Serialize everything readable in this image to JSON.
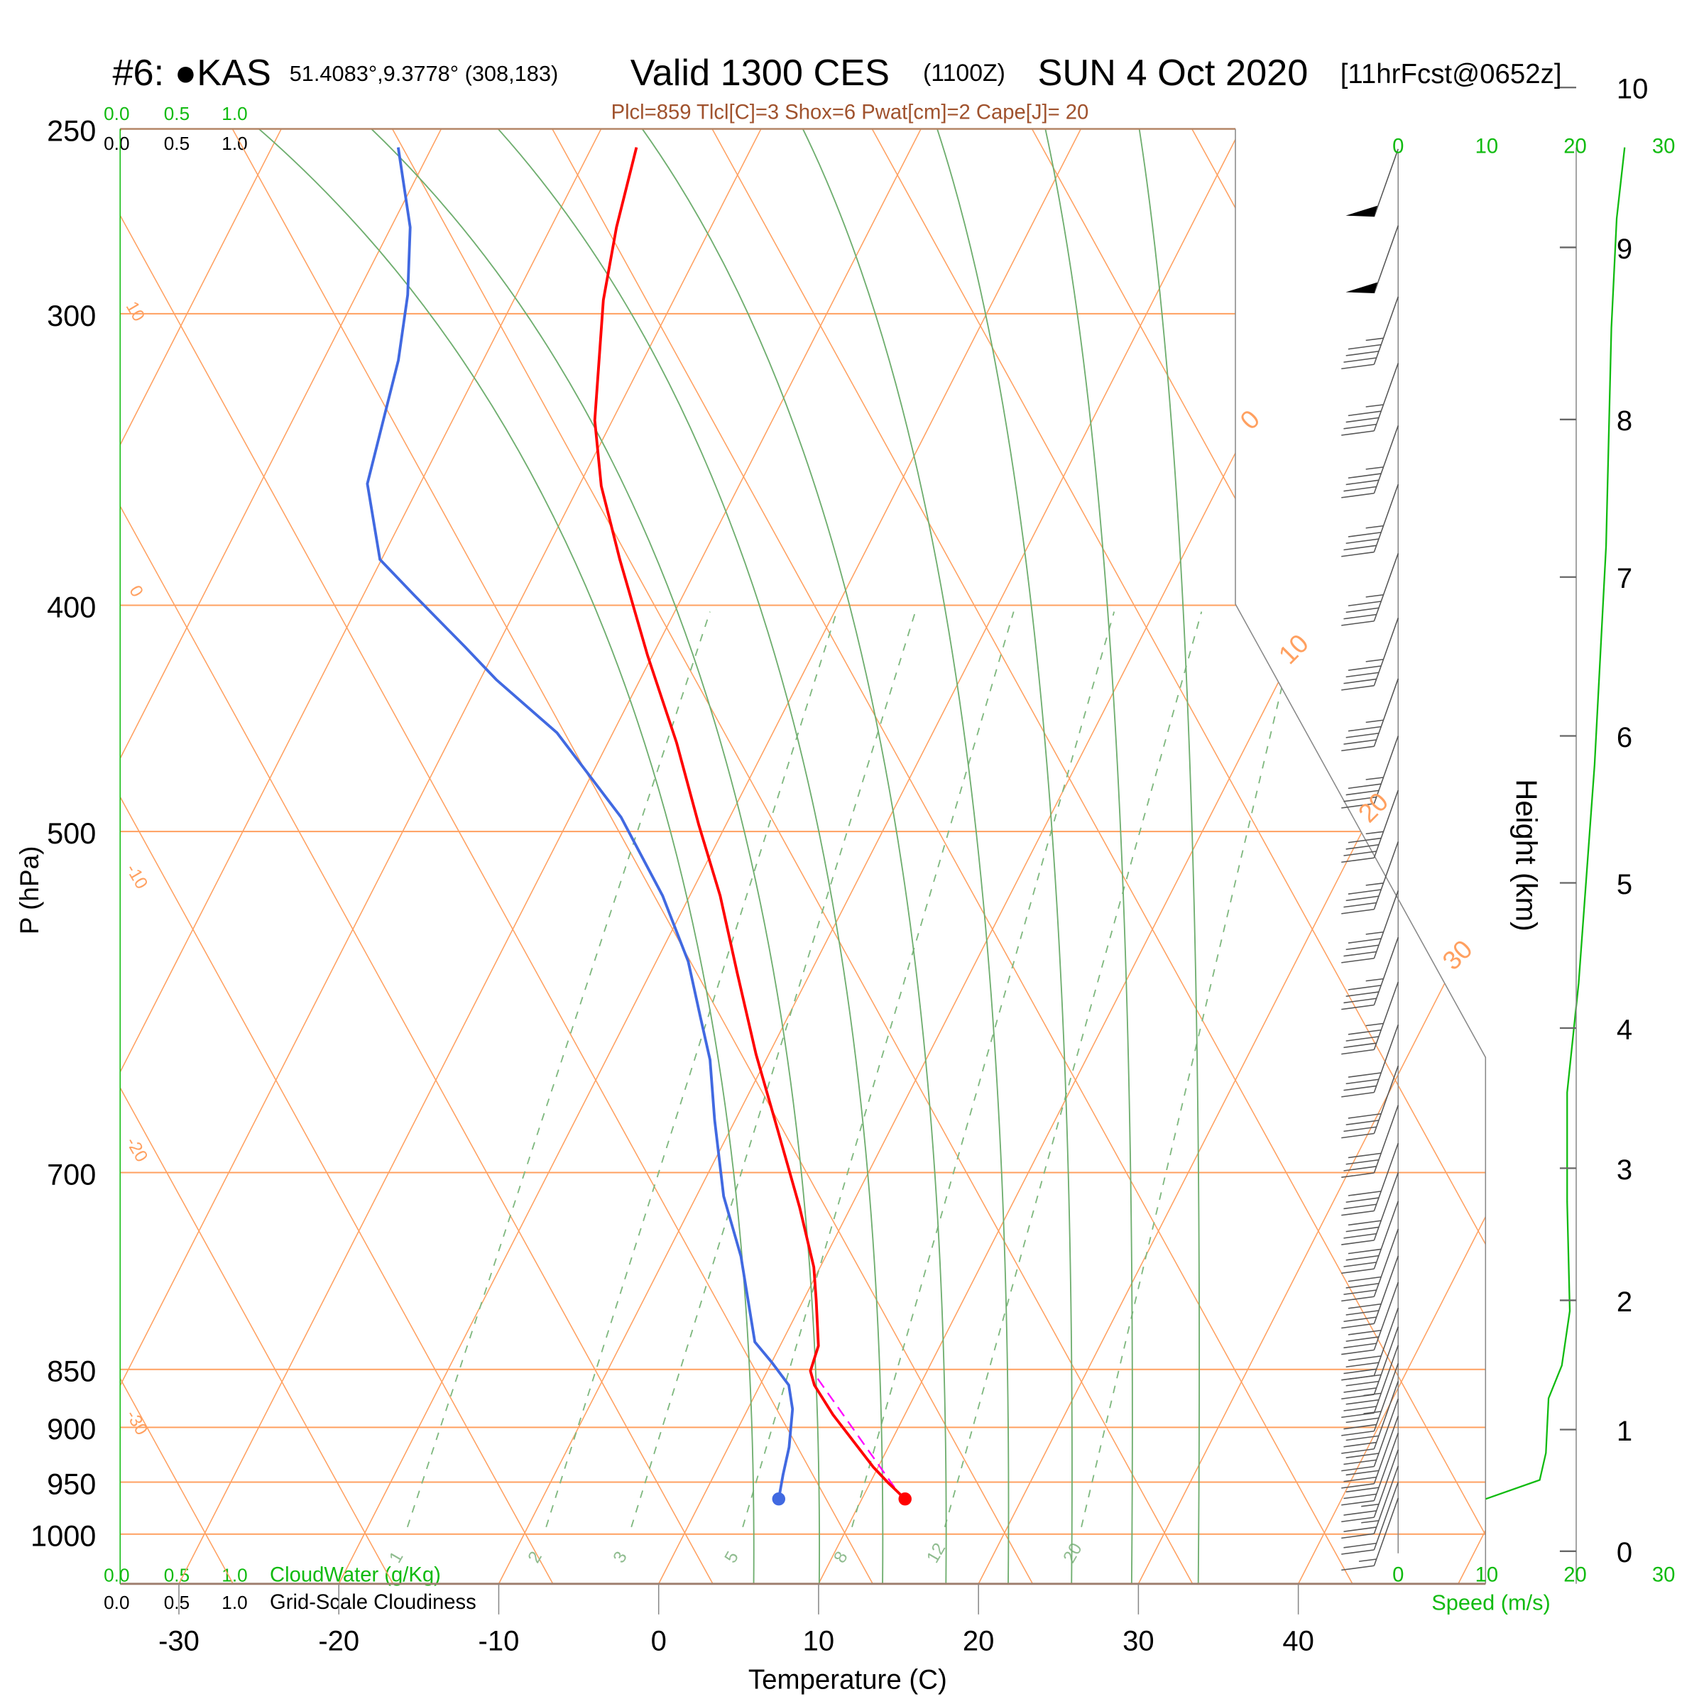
{
  "header": {
    "station": "#6: ●KAS",
    "coords": "51.4083°,9.3778° (308,183)",
    "valid": "Valid 1300 CES",
    "utc": "(1100Z)",
    "date": "SUN 4 Oct 2020",
    "forecast": "[11hrFcst@0652z]",
    "indices": "Plcl=859 Tlcl[C]=3 Shox=6 Pwat[cm]=2 Cape[J]= 20"
  },
  "cloud_scale": {
    "ticks": [
      "0.0",
      "0.5",
      "1.0"
    ],
    "cloudwater_label": "CloudWater (g/Kg)",
    "cloudiness_label": "Grid-Scale Cloudiness"
  },
  "colors": {
    "temperature": "#ff0000",
    "dewpoint": "#4169e1",
    "parcel": "#ff00ff",
    "isotherm": "#ffa060",
    "moist_adiabat": "#6fae6f",
    "mixing_ratio": "#7fb87f",
    "speed": "#11bb11",
    "indices": "#a0522d"
  },
  "chart_data": {
    "type": "line",
    "title": "Skew-T log-P sounding",
    "xlabel": "Temperature (C)",
    "ylabel": "P (hPa)",
    "y2label": "Height (km)",
    "speed_label": "Speed (m/s)",
    "xticks": [
      -30,
      -20,
      -10,
      0,
      10,
      20,
      30,
      40
    ],
    "yticks": [
      250,
      300,
      400,
      500,
      700,
      850,
      900,
      950,
      1000
    ],
    "height_ticks_km": [
      0,
      1,
      2,
      3,
      4,
      5,
      6,
      7,
      8,
      9,
      10
    ],
    "height_tick_pressures": [
      1017,
      902,
      794,
      697,
      607,
      526,
      455,
      389,
      333,
      281,
      240
    ],
    "speed_ticks": [
      0,
      10,
      20,
      30
    ],
    "isotherm_labels": [
      "0",
      "10",
      "20",
      "30"
    ],
    "adiabat_labels": [
      "10",
      "0",
      "-10",
      "-20",
      "-30"
    ],
    "mixing_ratio_labels": [
      "1",
      "2",
      "3",
      "5",
      "8",
      "12",
      "20"
    ],
    "series": [
      {
        "name": "Temperature",
        "unit": "C",
        "p": [
          254.6,
          275.5,
          296,
          333.3,
          355.6,
          382.3,
          420.3,
          458.1,
          496.7,
          532.7,
          574.5,
          622.9,
          671.6,
          724.3,
          768.4,
          793.8,
          830.5,
          851.3,
          863.3,
          888.8,
          936,
          950.3,
          965.9
        ],
        "t": [
          -47.2,
          -45.9,
          -44.4,
          -41.1,
          -38.6,
          -35.1,
          -30.3,
          -25.7,
          -21.7,
          -18.1,
          -14.6,
          -10.8,
          -7.0,
          -3.2,
          -0.4,
          0.8,
          2.4,
          2.7,
          3.4,
          5.5,
          9.7,
          11.1,
          12.7
        ]
      },
      {
        "name": "Dewpoint",
        "unit": "C",
        "p": [
          254.6,
          275.5,
          294.5,
          314.1,
          354.8,
          382.3,
          396.1,
          416.7,
          430.4,
          453.6,
          493,
          532.7,
          568.4,
          600,
          626.3,
          664.5,
          690,
          716.5,
          760.3,
          827.3,
          844,
          863.3,
          884,
          917.9,
          943.2,
          965.9
        ],
        "t": [
          -62.1,
          -58.8,
          -56.8,
          -55.3,
          -53.3,
          -50.1,
          -46.8,
          -42.0,
          -39.0,
          -33.5,
          -26.8,
          -21.7,
          -18.0,
          -15.5,
          -13.5,
          -11.3,
          -9.8,
          -8.3,
          -5.3,
          -1.7,
          0.0,
          1.8,
          2.8,
          3.8,
          4.3,
          4.8
        ]
      },
      {
        "name": "Parcel",
        "unit": "C",
        "p": [
          857.8,
          964
        ],
        "t": [
          3.4,
          12.4
        ]
      },
      {
        "name": "Wind speed",
        "unit": "m/s",
        "p": [
          965.9,
          948,
          923,
          874.6,
          846.7,
          802.4,
          720.3,
          646.8,
          580.7,
          468.2,
          377.3,
          304.2,
          273.1,
          254.6
        ],
        "v": [
          9.9,
          16,
          16.7,
          17,
          18.5,
          19.4,
          19.1,
          19.1,
          20.4,
          22.2,
          23.5,
          24.1,
          24.7,
          25.6
        ]
      }
    ],
    "wind_barbs": {
      "p": [
        255,
        275,
        295,
        315,
        335,
        355,
        380,
        405,
        430,
        455,
        480,
        505,
        530,
        555,
        580,
        605,
        630,
        655,
        680,
        700,
        720,
        740,
        760,
        780,
        800,
        815,
        830,
        845,
        860,
        875,
        890,
        905,
        920,
        935,
        950,
        965
      ],
      "kt": [
        50,
        50,
        45,
        45,
        45,
        45,
        45,
        45,
        45,
        45,
        45,
        45,
        45,
        45,
        45,
        40,
        40,
        40,
        40,
        40,
        40,
        40,
        40,
        40,
        40,
        40,
        35,
        35,
        30,
        30,
        30,
        30,
        25,
        25,
        20,
        15
      ]
    },
    "surface": {
      "temperature": 12.7,
      "dewpoint": 4.8,
      "p": 965.9
    }
  }
}
